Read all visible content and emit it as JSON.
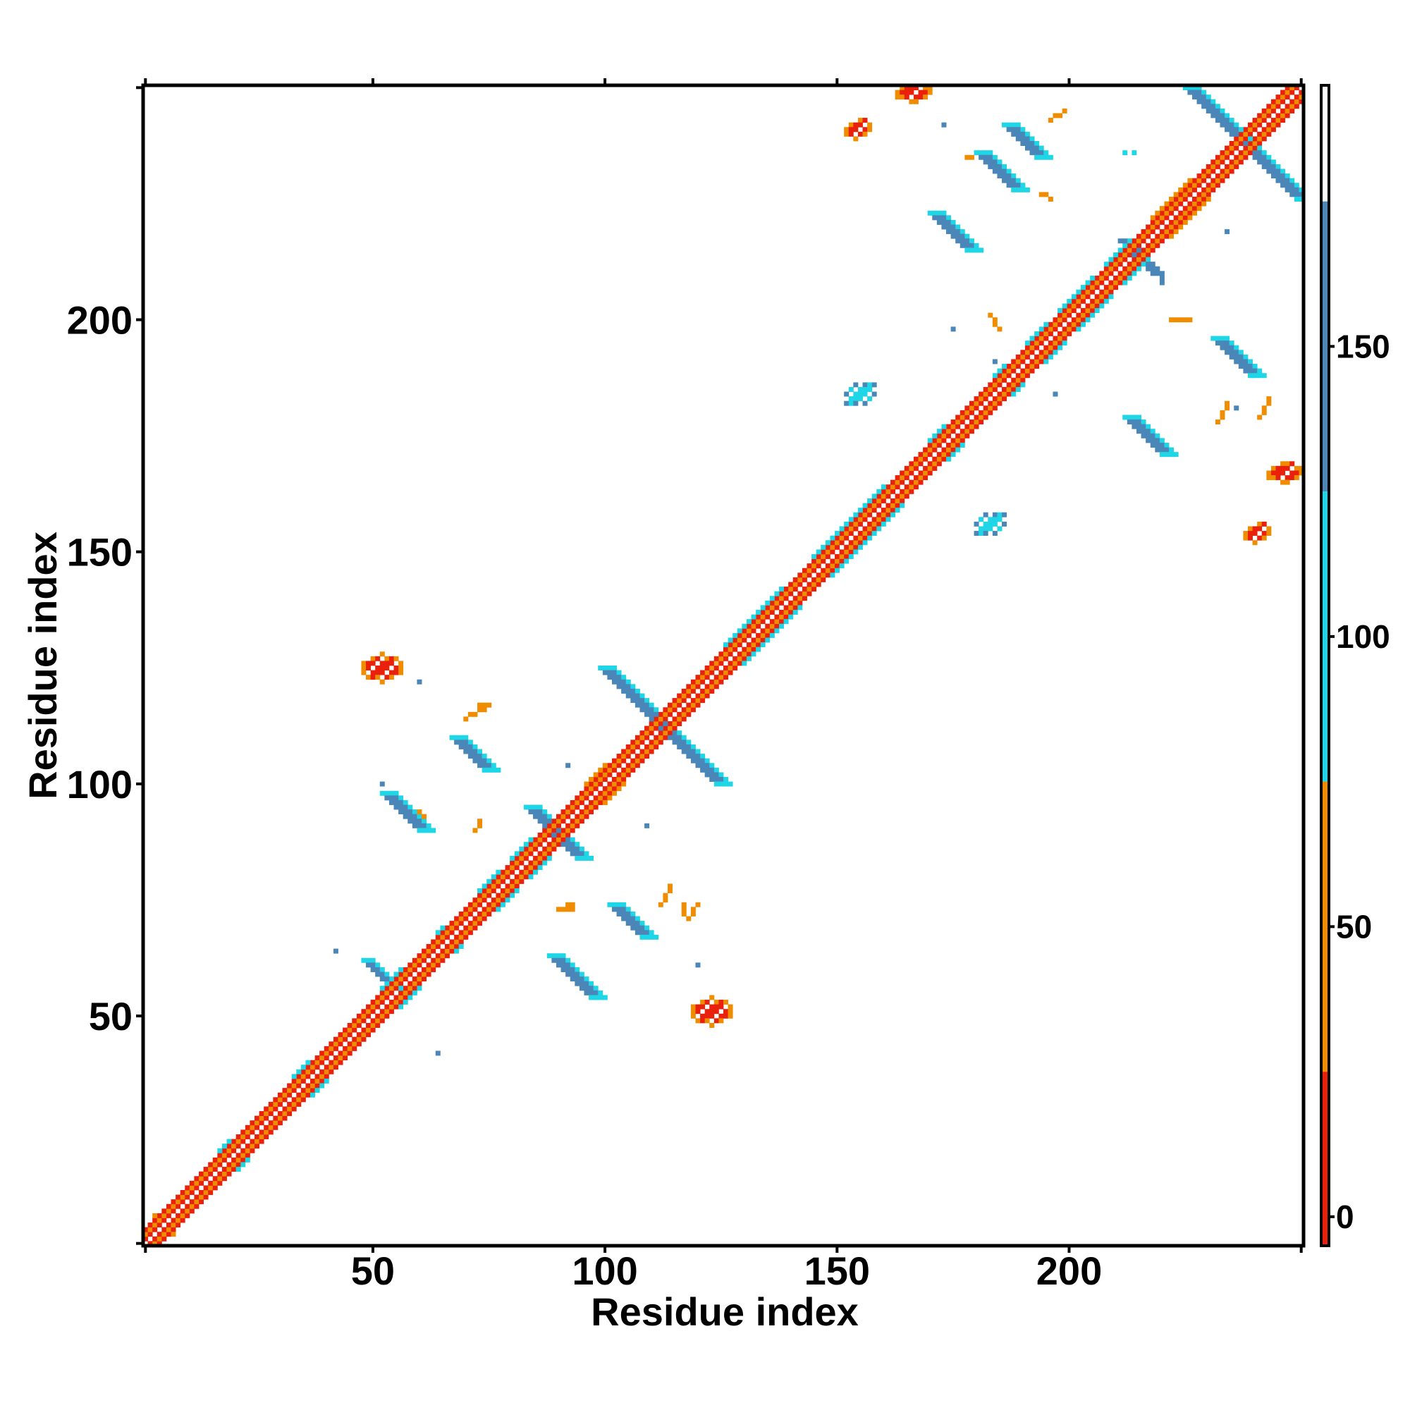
{
  "chart_data": {
    "type": "heatmap",
    "title": "",
    "xlabel": "Residue index",
    "ylabel": "Residue index",
    "xlim": [
      1,
      250
    ],
    "ylim": [
      1,
      250
    ],
    "x_ticks": [
      50,
      100,
      150,
      200
    ],
    "y_ticks": [
      50,
      100,
      150,
      200
    ],
    "x_tick_labels": [
      "50",
      "100",
      "150",
      "200"
    ],
    "y_tick_labels": [
      "50",
      "100",
      "150",
      "200"
    ],
    "grid": false,
    "colorbar": {
      "range": [
        -5,
        195
      ],
      "ticks": [
        0,
        50,
        100,
        150
      ],
      "tick_labels": [
        "0",
        "50",
        "100",
        "150"
      ],
      "bands": [
        {
          "from": -5,
          "to": 25,
          "color": "#e8200c"
        },
        {
          "from": 25,
          "to": 75,
          "color": "#f08c00"
        },
        {
          "from": 75,
          "to": 125,
          "color": "#1ed6e6"
        },
        {
          "from": 125,
          "to": 175,
          "color": "#4a86b8"
        },
        {
          "from": 175,
          "to": 195,
          "color": "#ffffff"
        }
      ]
    },
    "diagonal": {
      "from": 1,
      "to": 250,
      "inner_value": 0,
      "outer_value": 50
    },
    "regions": [
      {
        "kind": "helix-block",
        "from": 3,
        "to": 5,
        "value": 50
      },
      {
        "kind": "helix-block",
        "from": 17,
        "to": 21,
        "value": 100
      },
      {
        "kind": "helix-block",
        "from": 33,
        "to": 38,
        "value": 100
      },
      {
        "kind": "helix-block",
        "from": 52,
        "to": 58,
        "value": 100
      },
      {
        "kind": "helix-block",
        "from": 64,
        "to": 67,
        "value": 100
      },
      {
        "kind": "helix-block",
        "from": 73,
        "to": 79,
        "value": 100
      },
      {
        "kind": "helix-block",
        "from": 80,
        "to": 86,
        "value": 100
      },
      {
        "kind": "helix-block",
        "from": 96,
        "to": 102,
        "value": 50
      },
      {
        "kind": "helix-block",
        "from": 126,
        "to": 140,
        "value": 100
      },
      {
        "kind": "helix-block",
        "from": 145,
        "to": 162,
        "value": 100
      },
      {
        "kind": "helix-block",
        "from": 170,
        "to": 175,
        "value": 100
      },
      {
        "kind": "helix-block",
        "from": 184,
        "to": 188,
        "value": 100
      },
      {
        "kind": "helix-block",
        "from": 191,
        "to": 197,
        "value": 100
      },
      {
        "kind": "helix-block",
        "from": 198,
        "to": 207,
        "value": 100
      },
      {
        "kind": "helix-block",
        "from": 208,
        "to": 215,
        "value": 100
      },
      {
        "kind": "helix-block",
        "from": 218,
        "to": 228,
        "value": 50
      },
      {
        "kind": "anti",
        "x": 100,
        "y": 125,
        "len": 26,
        "value": 150,
        "w": 2,
        "cap": 100
      },
      {
        "kind": "anti",
        "x": 226,
        "y": 250,
        "len": 25,
        "value": 150,
        "w": 2,
        "cap": 100
      },
      {
        "kind": "anti",
        "x": 84,
        "y": 95,
        "len": 12,
        "value": 150,
        "w": 2,
        "cap": 100
      },
      {
        "kind": "anti",
        "x": 181,
        "y": 236,
        "len": 9,
        "value": 150,
        "w": 2,
        "cap": 100
      },
      {
        "kind": "anti",
        "x": 53,
        "y": 98,
        "len": 9,
        "value": 150,
        "w": 2,
        "cap": 100
      },
      {
        "kind": "anti",
        "x": 68,
        "y": 110,
        "len": 8,
        "value": 150,
        "w": 2,
        "cap": 100
      },
      {
        "kind": "anti",
        "x": 232,
        "y": 196,
        "len": 9,
        "value": 150,
        "w": 2,
        "cap": 100
      },
      {
        "kind": "anti",
        "x": 187,
        "y": 242,
        "len": 8,
        "value": 150,
        "w": 2,
        "cap": 100
      },
      {
        "kind": "anti",
        "x": 171,
        "y": 223,
        "len": 9,
        "value": 150,
        "w": 2,
        "cap": 100
      },
      {
        "kind": "anti",
        "x": 102,
        "y": 74,
        "len": 8,
        "value": 150,
        "w": 2,
        "cap": 100
      },
      {
        "kind": "anti",
        "x": 89,
        "y": 63,
        "len": 10,
        "value": 150,
        "w": 2,
        "cap": 100
      },
      {
        "kind": "anti",
        "x": 213,
        "y": 179,
        "len": 9,
        "value": 150,
        "w": 2,
        "cap": 100
      },
      {
        "kind": "anti",
        "x": 212,
        "y": 217,
        "len": 8,
        "value": 150,
        "w": 1,
        "cap": 150
      },
      {
        "kind": "anti",
        "x": 49,
        "y": 62,
        "len": 7,
        "value": 150,
        "w": 1,
        "cap": 100
      },
      {
        "kind": "blob",
        "x": 52,
        "y": 125,
        "rx": 3,
        "ry": 2,
        "value": 0,
        "rim": 50
      },
      {
        "kind": "blob",
        "x": 123,
        "y": 51,
        "rx": 3,
        "ry": 2,
        "value": 0,
        "rim": 50
      },
      {
        "kind": "blob",
        "x": 166,
        "y": 249,
        "rx": 3,
        "ry": 1.5,
        "value": 0,
        "rim": 50
      },
      {
        "kind": "blob",
        "x": 246,
        "y": 167,
        "rx": 3,
        "ry": 1.5,
        "value": 0,
        "rim": 50
      },
      {
        "kind": "blob",
        "x": 154,
        "y": 241,
        "rx": 2,
        "ry": 1.5,
        "value": 0,
        "rim": 50
      },
      {
        "kind": "blob",
        "x": 240,
        "y": 154,
        "rx": 2,
        "ry": 1.5,
        "value": 0,
        "rim": 50
      },
      {
        "kind": "blob",
        "x": 155,
        "y": 184,
        "rx": 2,
        "ry": 2,
        "value": 100,
        "rim": 150
      },
      {
        "kind": "blob",
        "x": 183,
        "y": 156,
        "rx": 2,
        "ry": 2,
        "value": 100,
        "rim": 150
      },
      {
        "kind": "dash",
        "x": 70,
        "y": 114,
        "dx": 4,
        "dy": 2,
        "value": 25
      },
      {
        "kind": "dash",
        "x": 112,
        "y": 74,
        "dx": 2,
        "dy": 4,
        "value": 25
      },
      {
        "kind": "dash",
        "x": 60,
        "y": 94,
        "dx": 2,
        "dy": -3,
        "value": 50
      },
      {
        "kind": "dash",
        "x": 94,
        "y": 60,
        "dx": -3,
        "dy": 2,
        "value": 50
      },
      {
        "kind": "dash",
        "x": 72,
        "y": 90,
        "dx": 1,
        "dy": 2,
        "value": 50
      },
      {
        "kind": "dash",
        "x": 91,
        "y": 73,
        "dx": 2,
        "dy": 1,
        "value": 50
      },
      {
        "kind": "dash",
        "x": 73,
        "y": 117,
        "dx": 2,
        "dy": 0,
        "value": 50
      },
      {
        "kind": "dash",
        "x": 117,
        "y": 72,
        "dx": 0,
        "dy": 2,
        "value": 50
      },
      {
        "kind": "dash",
        "x": 90,
        "y": 73,
        "dx": 3,
        "dy": 0,
        "value": 50
      },
      {
        "kind": "dash",
        "x": 120,
        "y": 74,
        "dx": -2,
        "dy": -3,
        "value": 25
      },
      {
        "kind": "dash",
        "x": 196,
        "y": 226,
        "dx": -2,
        "dy": 1,
        "value": 50
      },
      {
        "kind": "dash",
        "x": 178,
        "y": 235,
        "dx": 3,
        "dy": 1,
        "value": 25
      },
      {
        "kind": "dash",
        "x": 243,
        "y": 183,
        "dx": -2,
        "dy": -4,
        "value": 50
      },
      {
        "kind": "dash",
        "x": 232,
        "y": 178,
        "dx": 2,
        "dy": 4,
        "value": 25
      },
      {
        "kind": "dash",
        "x": 196,
        "y": 243,
        "dx": 3,
        "dy": 2,
        "value": 50
      },
      {
        "kind": "dash",
        "x": 222,
        "y": 200,
        "dx": 4,
        "dy": 0,
        "value": 25
      },
      {
        "kind": "dash",
        "x": 220,
        "y": 210,
        "dx": 0,
        "dy": -2,
        "value": 150
      },
      {
        "kind": "dash",
        "x": 183,
        "y": 201,
        "dx": 2,
        "dy": -3,
        "value": 25
      }
    ],
    "scatter_points": [
      {
        "x": 52,
        "y": 100,
        "value": 150
      },
      {
        "x": 60,
        "y": 122,
        "value": 150
      },
      {
        "x": 42,
        "y": 64,
        "value": 150
      },
      {
        "x": 64,
        "y": 42,
        "value": 150
      },
      {
        "x": 92,
        "y": 104,
        "value": 150
      },
      {
        "x": 109,
        "y": 91,
        "value": 150
      },
      {
        "x": 120,
        "y": 61,
        "value": 150
      },
      {
        "x": 236,
        "y": 181,
        "value": 150
      },
      {
        "x": 173,
        "y": 242,
        "value": 150
      },
      {
        "x": 212,
        "y": 236,
        "value": 100
      },
      {
        "x": 234,
        "y": 219,
        "value": 150
      },
      {
        "x": 175,
        "y": 198,
        "value": 150
      },
      {
        "x": 184,
        "y": 191,
        "value": 150
      },
      {
        "x": 197,
        "y": 184,
        "value": 150
      },
      {
        "x": 214,
        "y": 236,
        "value": 100
      },
      {
        "x": 244,
        "y": 231,
        "value": 150
      }
    ]
  }
}
